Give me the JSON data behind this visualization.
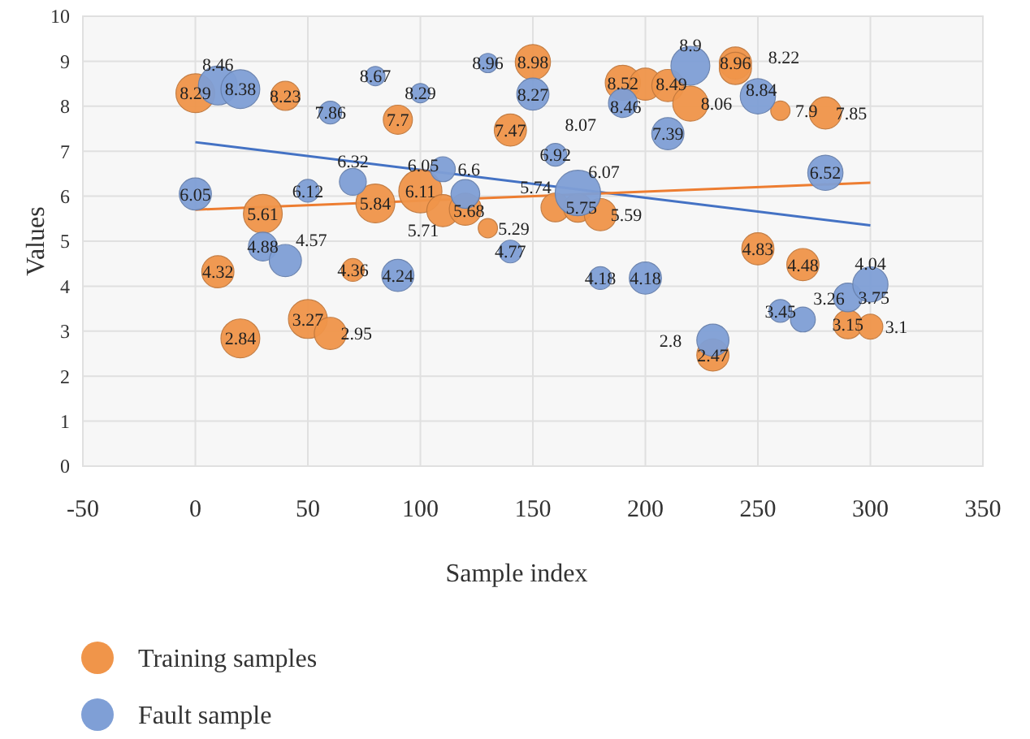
{
  "chart_data": {
    "type": "bubble",
    "xlabel": "Sample index",
    "ylabel": "Values",
    "xlim": [
      -50,
      350
    ],
    "xticks": [
      -50,
      0,
      50,
      100,
      150,
      200,
      250,
      300,
      350
    ],
    "ylim": [
      0,
      10
    ],
    "yticks": [
      0,
      1,
      2,
      3,
      4,
      5,
      6,
      7,
      8,
      9,
      10
    ],
    "grid": true,
    "legend": "bottom",
    "series": [
      {
        "name": "Training samples",
        "color": "#f0954a",
        "x": [
          0,
          30,
          40,
          10,
          20,
          50,
          60,
          70,
          90,
          80,
          100,
          110,
          120,
          130,
          140,
          150,
          160,
          170,
          180,
          190,
          200,
          210,
          220,
          230,
          240,
          240,
          260,
          280,
          250,
          270,
          290,
          300
        ],
        "values": [
          8.29,
          5.61,
          8.23,
          4.32,
          2.84,
          3.27,
          2.95,
          4.36,
          7.7,
          5.84,
          6.11,
          5.68,
          5.71,
          5.29,
          7.47,
          8.98,
          5.75,
          5.74,
          5.59,
          8.52,
          8.49,
          8.46,
          8.06,
          2.47,
          8.96,
          8.84,
          7.9,
          7.85,
          4.83,
          4.48,
          3.15,
          3.1
        ],
        "sizes": [
          0.73,
          0.73,
          0.41,
          0.5,
          0.73,
          0.73,
          0.5,
          0.25,
          0.41,
          0.73,
          0.9,
          0.5,
          0.5,
          0.18,
          0.5,
          0.6,
          0.4,
          0.4,
          0.5,
          0.6,
          0.5,
          0.5,
          0.6,
          0.5,
          0.5,
          0.5,
          0.18,
          0.5,
          0.5,
          0.5,
          0.4,
          0.3
        ],
        "value_labels": [
          "8.29",
          "5.61",
          "8.23",
          "4.32",
          "2.84",
          "3.27",
          "2.95",
          "4.36",
          "7.7",
          "5.84",
          "6.11",
          "5.68",
          "5.71",
          "5.29",
          "7.47",
          "8.98",
          "5.75",
          "5.74",
          "5.59",
          "8.52",
          "8.49",
          "8.46",
          "8.06",
          "2.47",
          "8.96",
          "8.84",
          "7.9",
          "7.85",
          "4.83",
          "4.48",
          "3.15",
          "3.1"
        ]
      },
      {
        "name": "Fault sample",
        "color": "#7f9fd6",
        "x": [
          0,
          10,
          20,
          30,
          40,
          50,
          60,
          70,
          80,
          90,
          100,
          110,
          120,
          130,
          140,
          150,
          160,
          170,
          180,
          190,
          200,
          210,
          220,
          230,
          250,
          260,
          270,
          280,
          290,
          300
        ],
        "values": [
          6.05,
          8.46,
          8.38,
          4.88,
          4.57,
          6.12,
          7.86,
          6.32,
          8.67,
          4.24,
          8.29,
          6.6,
          6.05,
          8.96,
          4.77,
          8.27,
          6.92,
          6.07,
          4.18,
          8.07,
          4.18,
          7.39,
          8.9,
          2.8,
          8.22,
          3.45,
          3.26,
          6.52,
          3.75,
          4.04
        ],
        "sizes": [
          0.5,
          0.73,
          0.73,
          0.4,
          0.5,
          0.25,
          0.25,
          0.35,
          0.18,
          0.5,
          0.18,
          0.3,
          0.4,
          0.18,
          0.25,
          0.5,
          0.25,
          1,
          0.25,
          0.4,
          0.5,
          0.5,
          0.73,
          0.5,
          0.6,
          0.25,
          0.3,
          0.6,
          0.4,
          0.6
        ],
        "value_labels": [
          "6.05",
          "8.46",
          "8.38",
          "4.88",
          "4.57",
          "6.12",
          "7.86",
          "6.32",
          "8.67",
          "4.24",
          "8.29",
          "6.6",
          "6.05",
          "8.96",
          "4.77",
          "8.27",
          "6.92",
          "6.07",
          "4.18",
          "8.07",
          "4.18",
          "7.39",
          "8.9",
          "2.8",
          "8.22",
          "3.45",
          "3.26",
          "6.52",
          "3.75",
          "4.04"
        ]
      },
      {
        "type": "line",
        "color": "#4472c4",
        "x": [
          0,
          300
        ],
        "values": [
          7.2,
          5.35
        ]
      },
      {
        "type": "line",
        "color": "#ed7d31",
        "x": [
          0,
          300
        ],
        "values": [
          5.7,
          6.3
        ]
      }
    ]
  }
}
